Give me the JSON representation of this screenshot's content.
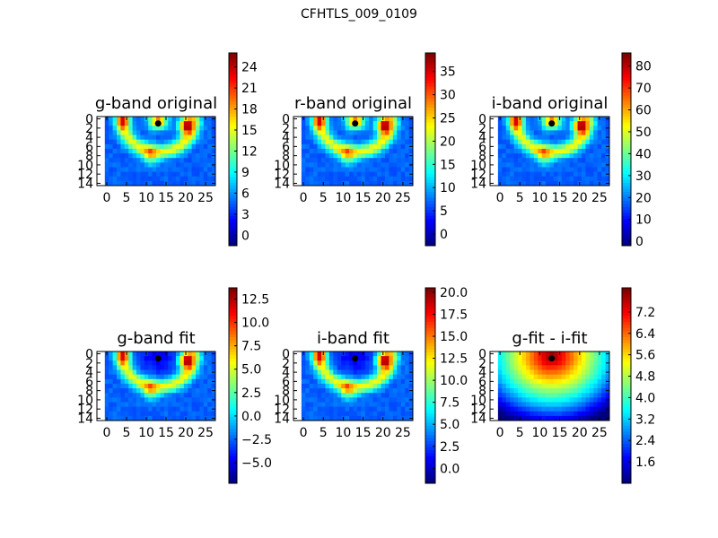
{
  "figure_title": "CFHTLS_009_0109",
  "colormap": "jet",
  "chart_data": [
    {
      "type": "heatmap",
      "title": "g-band original",
      "xlim": [
        -2.5,
        27.5
      ],
      "ylim": [
        14.5,
        -0.5
      ],
      "xticks": [
        0,
        5,
        10,
        15,
        20,
        25
      ],
      "yticks": [
        0,
        2,
        4,
        6,
        8,
        10,
        12,
        14
      ],
      "colorbar": {
        "min": -1.5,
        "max": 26,
        "ticks": [
          0,
          3,
          6,
          9,
          12,
          15,
          18,
          21,
          24
        ]
      },
      "marker": {
        "x": 13,
        "y": 1
      },
      "pattern": "ring"
    },
    {
      "type": "heatmap",
      "title": "r-band original",
      "xlim": [
        -2.5,
        27.5
      ],
      "ylim": [
        14.5,
        -0.5
      ],
      "xticks": [
        0,
        5,
        10,
        15,
        20,
        25
      ],
      "yticks": [
        0,
        2,
        4,
        6,
        8,
        10,
        12,
        14
      ],
      "colorbar": {
        "min": -2.5,
        "max": 39,
        "ticks": [
          0,
          5,
          10,
          15,
          20,
          25,
          30,
          35
        ]
      },
      "marker": {
        "x": 13,
        "y": 1
      },
      "pattern": "ring"
    },
    {
      "type": "heatmap",
      "title": "i-band original",
      "xlim": [
        -2.5,
        27.5
      ],
      "ylim": [
        14.5,
        -0.5
      ],
      "xticks": [
        0,
        5,
        10,
        15,
        20,
        25
      ],
      "yticks": [
        0,
        2,
        4,
        6,
        8,
        10,
        12,
        14
      ],
      "colorbar": {
        "min": -2,
        "max": 86,
        "ticks": [
          0,
          10,
          20,
          30,
          40,
          50,
          60,
          70,
          80
        ]
      },
      "marker": {
        "x": 13,
        "y": 1
      },
      "pattern": "ring"
    },
    {
      "type": "heatmap",
      "title": "g-band fit",
      "xlim": [
        -2.5,
        27.5
      ],
      "ylim": [
        14.5,
        -0.5
      ],
      "xticks": [
        0,
        5,
        10,
        15,
        20,
        25
      ],
      "yticks": [
        0,
        2,
        4,
        6,
        8,
        10,
        12,
        14
      ],
      "colorbar": {
        "min": -7.2,
        "max": 13.7,
        "ticks": [
          -5.0,
          -2.5,
          0.0,
          2.5,
          5.0,
          7.5,
          10.0,
          12.5
        ],
        "labels": [
          "−5.0",
          "−2.5",
          "0.0",
          "2.5",
          "5.0",
          "7.5",
          "10.0",
          "12.5"
        ]
      },
      "marker": {
        "x": 13,
        "y": 1
      },
      "pattern": "residual"
    },
    {
      "type": "heatmap",
      "title": "i-band fit",
      "xlim": [
        -2.5,
        27.5
      ],
      "ylim": [
        14.5,
        -0.5
      ],
      "xticks": [
        0,
        5,
        10,
        15,
        20,
        25
      ],
      "yticks": [
        0,
        2,
        4,
        6,
        8,
        10,
        12,
        14
      ],
      "colorbar": {
        "min": -1.7,
        "max": 20.5,
        "ticks": [
          0.0,
          2.5,
          5.0,
          7.5,
          10.0,
          12.5,
          15.0,
          17.5,
          20.0
        ],
        "labels": [
          "0.0",
          "2.5",
          "5.0",
          "7.5",
          "10.0",
          "12.5",
          "15.0",
          "17.5",
          "20.0"
        ]
      },
      "marker": {
        "x": 13,
        "y": 1
      },
      "pattern": "residual"
    },
    {
      "type": "heatmap",
      "title": "g-fit - i-fit",
      "xlim": [
        -2.5,
        27.5
      ],
      "ylim": [
        14.5,
        -0.5
      ],
      "xticks": [
        0,
        5,
        10,
        15,
        20,
        25
      ],
      "yticks": [
        0,
        2,
        4,
        6,
        8,
        10,
        12,
        14
      ],
      "colorbar": {
        "min": 0.8,
        "max": 8.1,
        "ticks": [
          1.6,
          2.4,
          3.2,
          4.0,
          4.8,
          5.6,
          6.4,
          7.2
        ],
        "labels": [
          "1.6",
          "2.4",
          "3.2",
          "4.0",
          "4.8",
          "5.6",
          "6.4",
          "7.2"
        ]
      },
      "marker": {
        "x": 13,
        "y": 1
      },
      "pattern": "radial"
    }
  ]
}
